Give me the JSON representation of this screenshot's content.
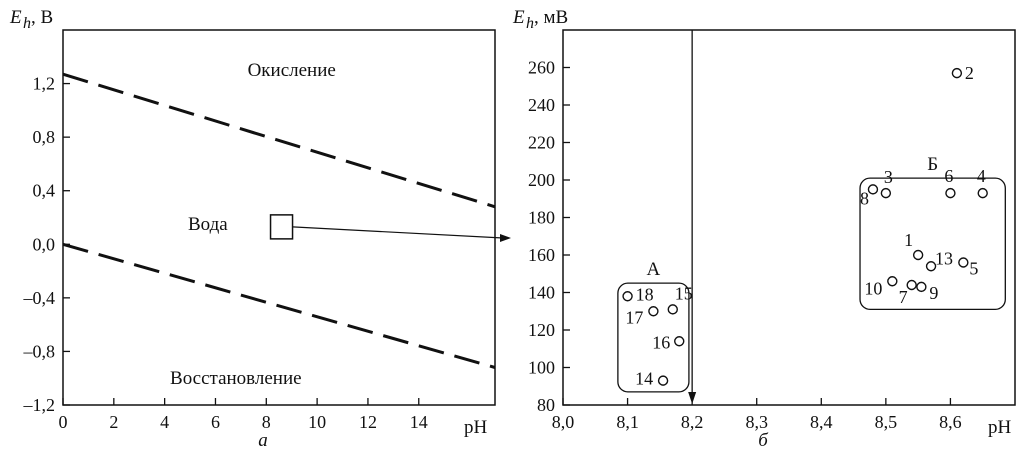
{
  "chart_data": [
    {
      "type": "line",
      "panel_label": "а",
      "ylabel_main": "E",
      "ylabel_sub": "h",
      "ylabel_unit": ", В",
      "xlabel": "pH",
      "xlim": [
        0,
        17
      ],
      "ylim": [
        -1.2,
        1.6
      ],
      "x_ticks": [
        "0",
        "2",
        "4",
        "6",
        "8",
        "10",
        "12",
        "14"
      ],
      "x_tick_values": [
        0,
        2,
        4,
        6,
        8,
        10,
        12,
        14
      ],
      "y_ticks": [
        "1,2",
        "0,8",
        "0,4",
        "0,0",
        "–0,4",
        "–0,8",
        "–1,2"
      ],
      "y_tick_values": [
        1.2,
        0.8,
        0.4,
        0.0,
        -0.4,
        -0.8,
        -1.2
      ],
      "series": [
        {
          "x": [
            0,
            17
          ],
          "y": [
            1.27,
            0.28
          ],
          "style": "dashed"
        },
        {
          "x": [
            0,
            17
          ],
          "y": [
            0.0,
            -0.92
          ],
          "style": "dashed"
        }
      ],
      "region_labels": [
        {
          "text": "Окисление",
          "x": 9.0,
          "y": 1.3
        },
        {
          "text": "Вода",
          "x": 5.7,
          "y": 0.15
        },
        {
          "text": "Восстановление",
          "x": 6.8,
          "y": -1.0
        }
      ],
      "marker_box": {
        "x": 8.6,
        "y": 0.13
      },
      "grid": false
    },
    {
      "type": "scatter",
      "panel_label": "б",
      "ylabel_main": "E",
      "ylabel_sub": "h",
      "ylabel_unit": ", мВ",
      "xlabel": "pH",
      "xlim": [
        8.0,
        8.7
      ],
      "ylim": [
        80,
        280
      ],
      "x_ticks": [
        "8,0",
        "8,1",
        "8,2",
        "8,3",
        "8,4",
        "8,5",
        "8,6"
      ],
      "x_tick_values": [
        8.0,
        8.1,
        8.2,
        8.3,
        8.4,
        8.5,
        8.6
      ],
      "y_ticks": [
        "260",
        "240",
        "220",
        "200",
        "180",
        "160",
        "140",
        "120",
        "100",
        "80"
      ],
      "y_tick_values": [
        260,
        240,
        220,
        200,
        180,
        160,
        140,
        120,
        100,
        80
      ],
      "vertical_arrow_x": 8.2,
      "points": [
        {
          "label": "2",
          "x": 8.61,
          "y": 257
        },
        {
          "label": "3",
          "x": 8.5,
          "y": 193
        },
        {
          "label": "8",
          "x": 8.48,
          "y": 195
        },
        {
          "label": "6",
          "x": 8.6,
          "y": 193
        },
        {
          "label": "4",
          "x": 8.65,
          "y": 193
        },
        {
          "label": "1",
          "x": 8.55,
          "y": 160
        },
        {
          "label": "13",
          "x": 8.57,
          "y": 154
        },
        {
          "label": "5",
          "x": 8.62,
          "y": 156
        },
        {
          "label": "10",
          "x": 8.51,
          "y": 146
        },
        {
          "label": "7",
          "x": 8.54,
          "y": 144
        },
        {
          "label": "9",
          "x": 8.555,
          "y": 143
        },
        {
          "label": "18",
          "x": 8.1,
          "y": 138
        },
        {
          "label": "15",
          "x": 8.17,
          "y": 131
        },
        {
          "label": "17",
          "x": 8.14,
          "y": 130
        },
        {
          "label": "16",
          "x": 8.18,
          "y": 114
        },
        {
          "label": "14",
          "x": 8.155,
          "y": 93
        }
      ],
      "groups": [
        {
          "label": "А"
        },
        {
          "label": "Б"
        }
      ],
      "grid": false
    }
  ]
}
